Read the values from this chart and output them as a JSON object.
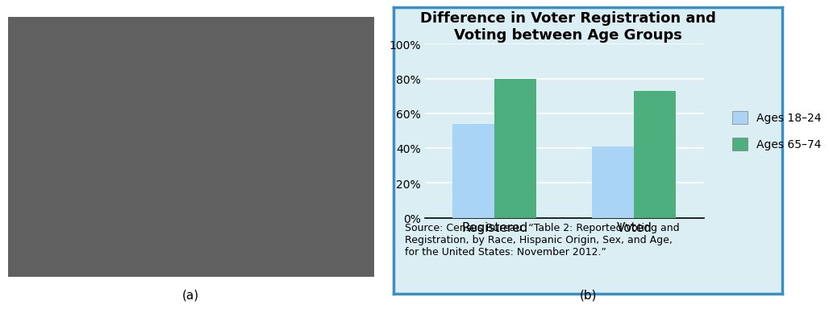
{
  "title": "Difference in Voter Registration and\nVoting between Age Groups",
  "categories": [
    "Registered",
    "Voted"
  ],
  "ages_18_24": [
    54,
    41
  ],
  "ages_65_74": [
    80,
    73
  ],
  "color_18_24": "#aad4f5",
  "color_65_74": "#4caf7d",
  "legend_18_24": "Ages 18–24",
  "legend_65_74": "Ages 65–74",
  "yticks": [
    0,
    20,
    40,
    60,
    80,
    100
  ],
  "ytick_labels": [
    "0%",
    "20%",
    "40%",
    "60%",
    "80%",
    "100%"
  ],
  "bg_color": "#daeef3",
  "plot_bg_color": "#daeef3",
  "border_color": "#3b8fc4",
  "source_text": "Source: Census Bureau. “Table 2: Reported Voting and\nRegistration, by Race, Hispanic Origin, Sex, and Age,\nfor the United States: November 2012.”",
  "label_a": "(a)",
  "label_b": "(b)",
  "title_fontsize": 13,
  "tick_fontsize": 10,
  "legend_fontsize": 10,
  "source_fontsize": 9.0,
  "photo_color": [
    0.38,
    0.38,
    0.38
  ]
}
